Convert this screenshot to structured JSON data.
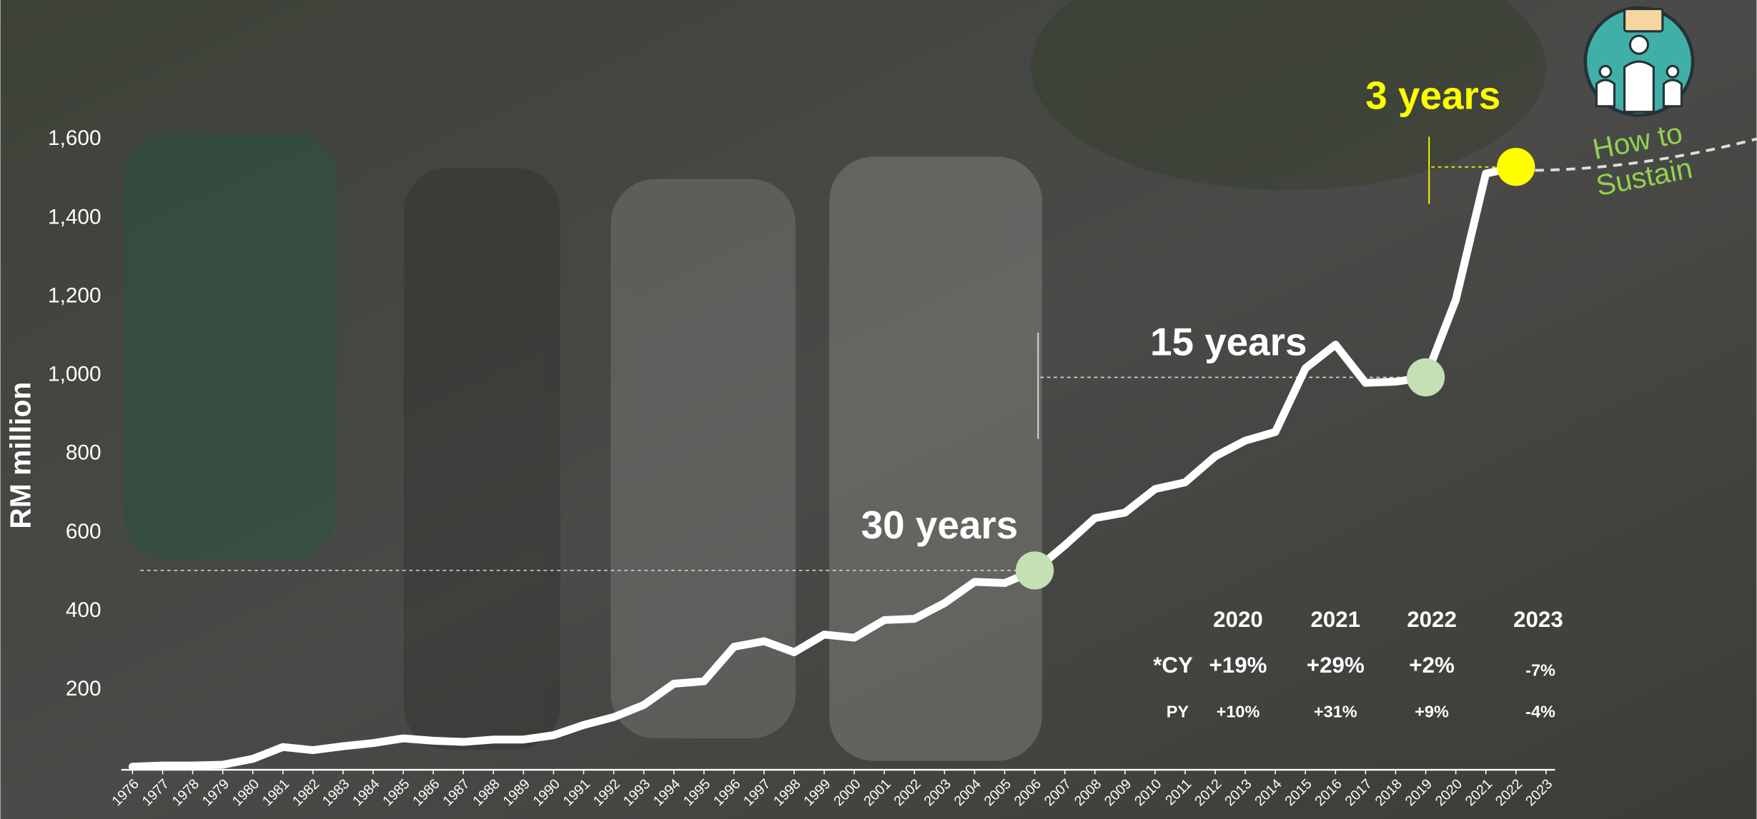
{
  "chart_data": {
    "type": "line",
    "y_label": "RM million",
    "categories": [
      "1976",
      "1977",
      "1978",
      "1979",
      "1980",
      "1981",
      "1982",
      "1983",
      "1984",
      "1985",
      "1986",
      "1987",
      "1988",
      "1989",
      "1990",
      "1991",
      "1992",
      "1993",
      "1994",
      "1995",
      "1996",
      "1997",
      "1998",
      "1999",
      "2000",
      "2001",
      "2002",
      "2003",
      "2004",
      "2005",
      "2006",
      "2007",
      "2008",
      "2009",
      "2010",
      "2011",
      "2012",
      "2013",
      "2014",
      "2015",
      "2016",
      "2017",
      "2018",
      "2019",
      "2020",
      "2021",
      "2022",
      "2023"
    ],
    "values": [
      5,
      8,
      8,
      10,
      25,
      55,
      47,
      57,
      65,
      77,
      71,
      68,
      74,
      74,
      85,
      111,
      131,
      162,
      216,
      222,
      310,
      324,
      296,
      341,
      333,
      378,
      381,
      421,
      475,
      472,
      504,
      568,
      637,
      651,
      711,
      728,
      794,
      834,
      856,
      1018,
      1078,
      981,
      984,
      995,
      1192,
      1513,
      1530,
      null
    ],
    "color": "#ffffff",
    "ylim": [
      0,
      1700
    ],
    "yticks": [
      200,
      400,
      600,
      800,
      {
        "value": 1000,
        "label": "1,000"
      },
      {
        "value": 1200,
        "label": "1,200"
      },
      {
        "value": 1400,
        "label": "1,400"
      },
      {
        "value": 1600,
        "label": "1,600"
      }
    ],
    "annotations": [
      {
        "text": "30 years",
        "at": "2006",
        "color": "#c5e0b4",
        "text_color": "#ffffff"
      },
      {
        "text": "15 years",
        "at": "2019",
        "color": "#c5e0b4",
        "text_color": "#ffffff"
      },
      {
        "text": "3 years",
        "at": "2022",
        "color": "#ffff00",
        "text_color": "#ffff00"
      }
    ],
    "projection_label": [
      "How to",
      "Sustain"
    ],
    "table": {
      "header": [
        "2020",
        "2021",
        "2022",
        "2023"
      ],
      "rows": [
        [
          "*CY",
          "+19%",
          "+29%",
          "+2%",
          "-7%"
        ],
        [
          "PY",
          "+10%",
          "+31%",
          "+9%",
          "-4%"
        ]
      ]
    }
  }
}
